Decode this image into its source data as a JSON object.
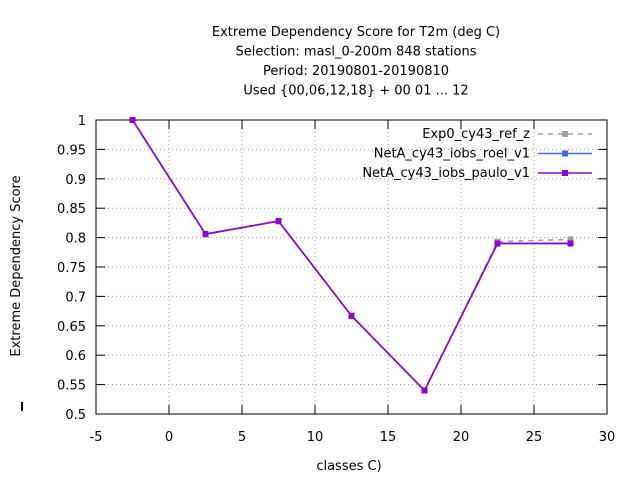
{
  "chart_data": {
    "type": "line",
    "title_lines": [
      "Extreme Dependency Score  for T2m (deg C)",
      "Selection: masl_0-200m    848 stations",
      "Period: 20190801-20190810",
      "Used {00,06,12,18} + 00 01 ... 12"
    ],
    "xlabel": "classes C)",
    "ylabel": "Extreme Dependency Score",
    "xlim": [
      -5,
      30
    ],
    "ylim": [
      0.5,
      1.0
    ],
    "x_ticks": [
      -5,
      0,
      5,
      10,
      15,
      20,
      25,
      30
    ],
    "x_tick_labels": [
      "-5",
      "0",
      "5",
      "10",
      "15",
      "20",
      "25",
      "30"
    ],
    "y_ticks": [
      0.5,
      0.55,
      0.6,
      0.65,
      0.7,
      0.75,
      0.8,
      0.85,
      0.9,
      0.95,
      1.0
    ],
    "y_tick_labels": [
      "0.5",
      "0.55",
      "0.6",
      "0.65",
      "0.7",
      "0.75",
      "0.8",
      "0.85",
      "0.9",
      "0.95",
      "1"
    ],
    "grid": true,
    "legend_position": "top-right",
    "series": [
      {
        "name": "Exp0_cy43_ref_z",
        "color": "#a0a0a0",
        "dashed": true,
        "x": [
          -2.5,
          2.5,
          7.5,
          12.5,
          17.5,
          22.5,
          27.5
        ],
        "y": [
          1.0,
          0.806,
          0.828,
          0.667,
          0.54,
          0.793,
          0.797
        ]
      },
      {
        "name": "NetA_cy43_iobs_roel_v1",
        "color": "#4169e1",
        "dashed": false,
        "x": [
          -2.5,
          2.5,
          7.5,
          12.5,
          17.5,
          22.5,
          27.5
        ],
        "y": [
          1.0,
          0.806,
          0.828,
          0.667,
          0.54,
          0.79,
          0.79
        ]
      },
      {
        "name": "NetA_cy43_iobs_paulo_v1",
        "color": "#9400d3",
        "dashed": false,
        "x": [
          -2.5,
          2.5,
          7.5,
          12.5,
          17.5,
          22.5,
          27.5
        ],
        "y": [
          1.0,
          0.806,
          0.828,
          0.667,
          0.54,
          0.79,
          0.79
        ]
      }
    ]
  }
}
